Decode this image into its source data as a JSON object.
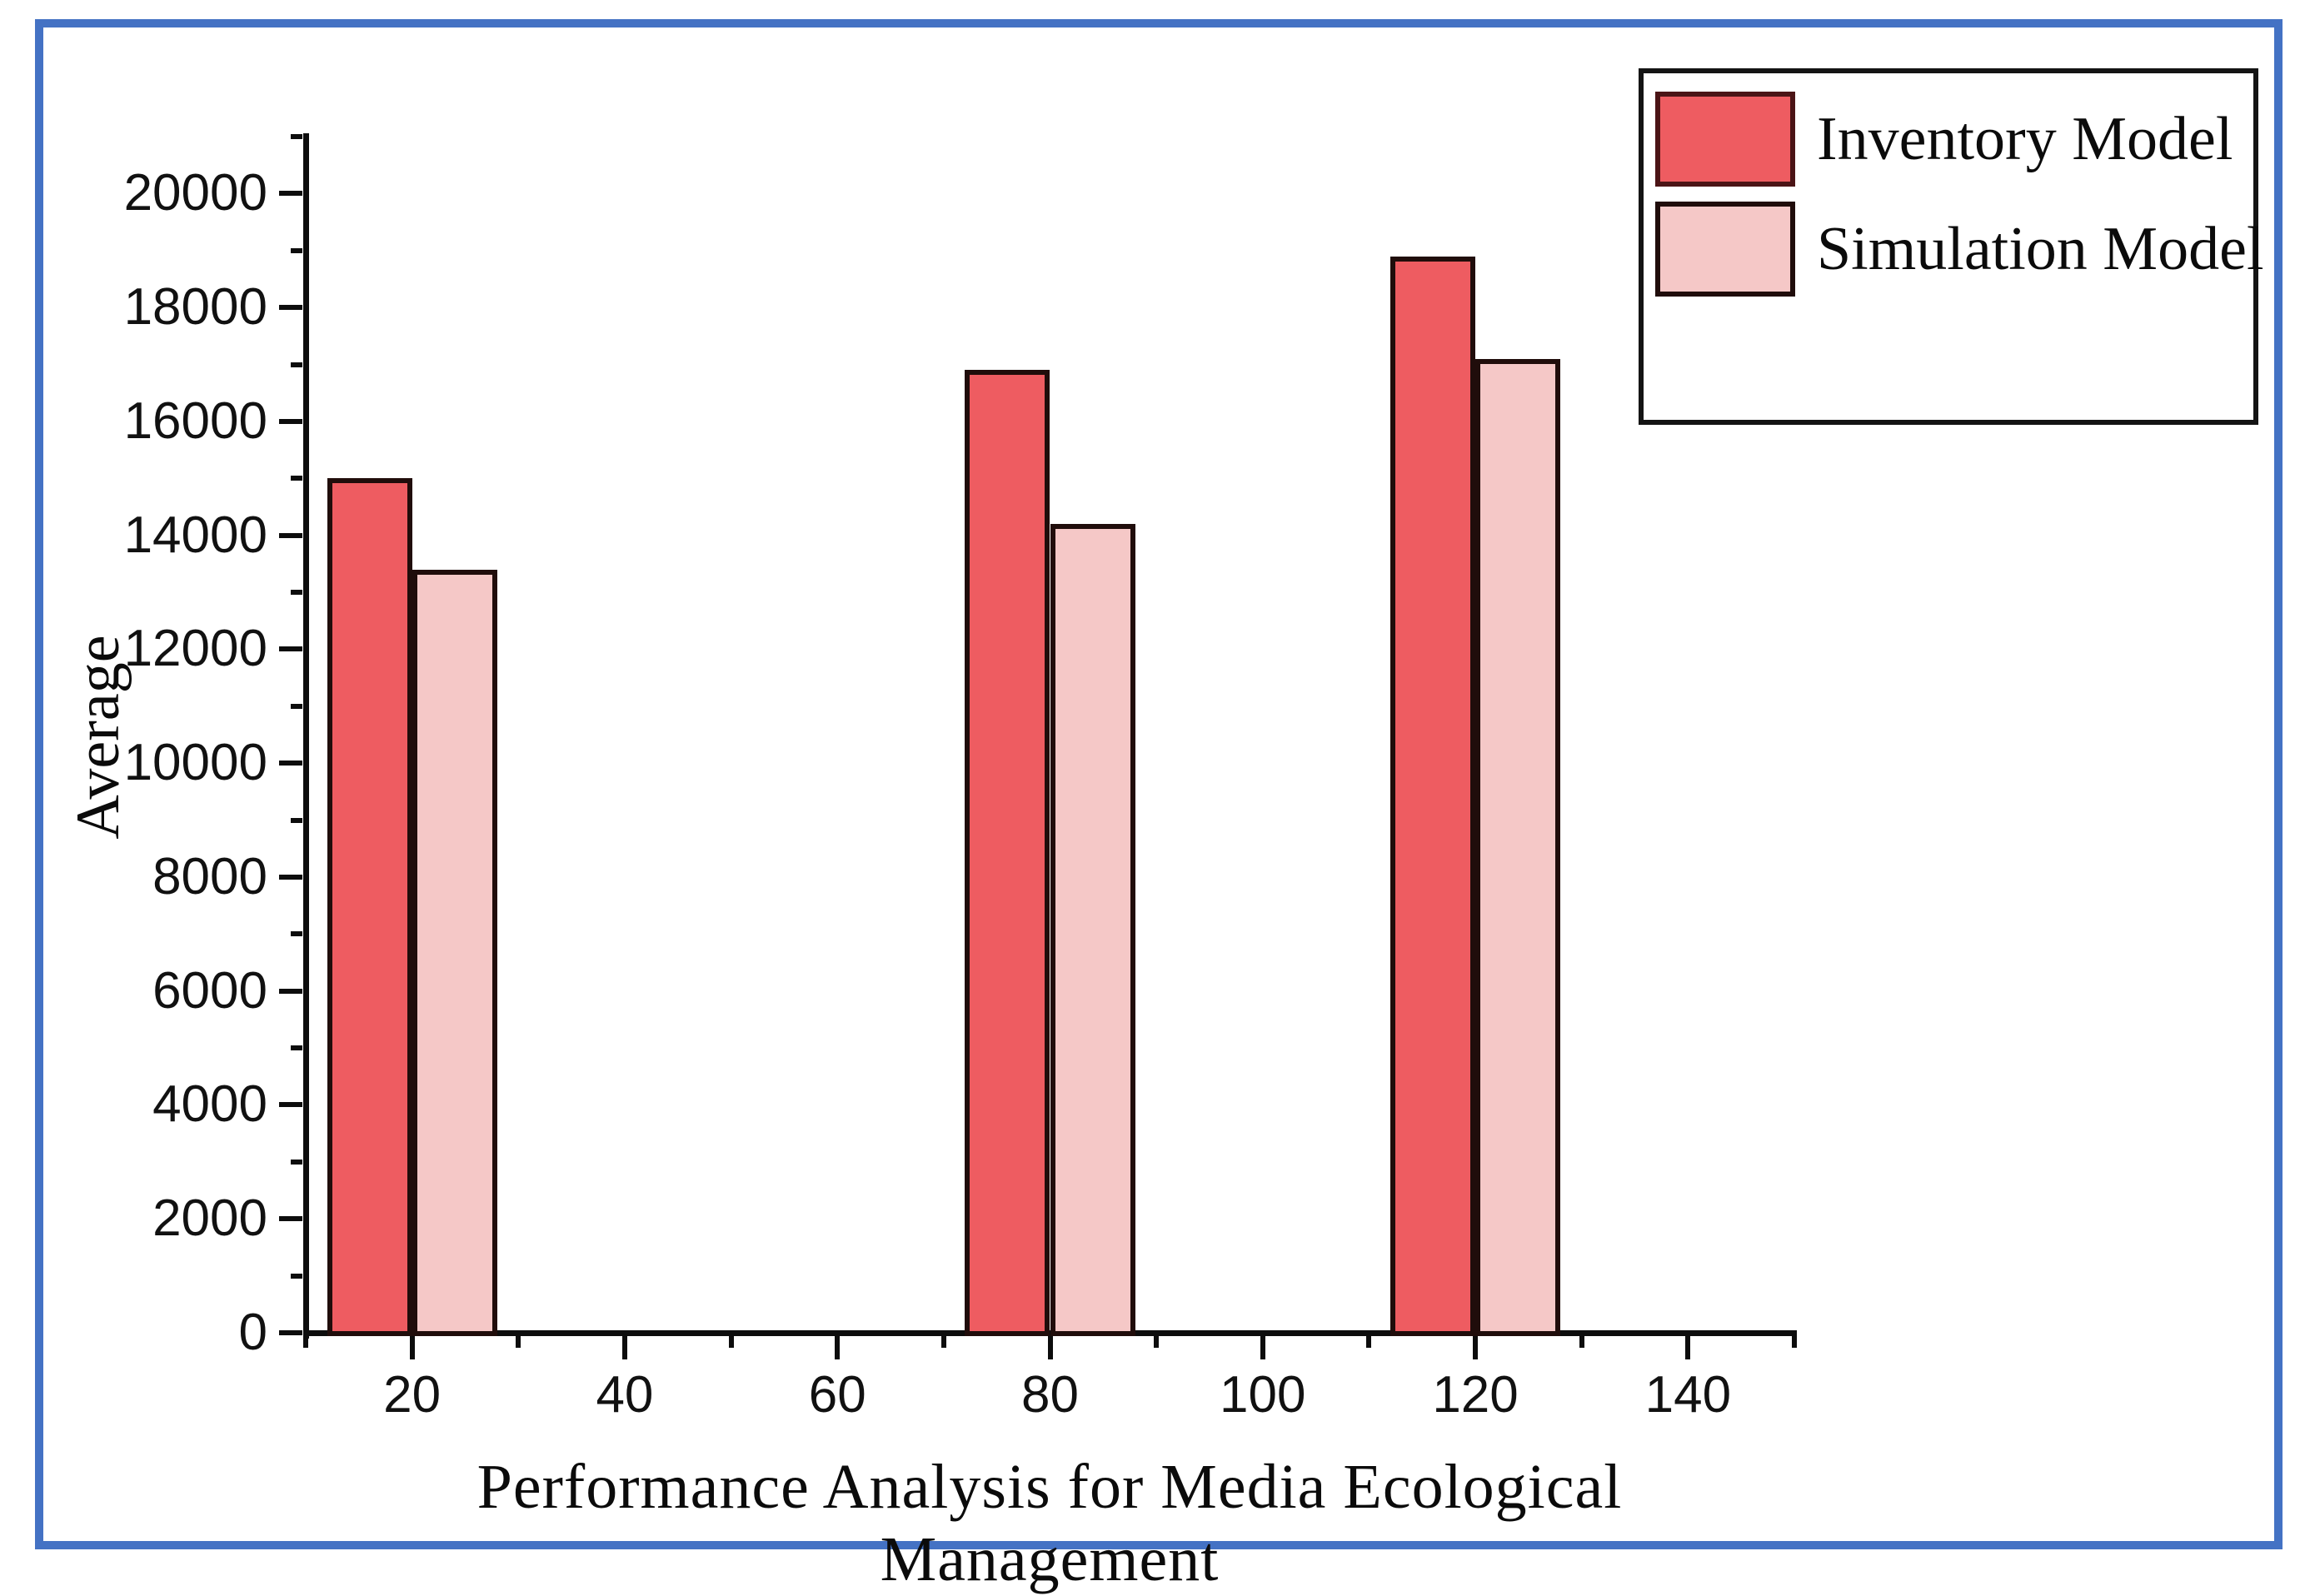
{
  "frame": {
    "border_color": "#4472c4",
    "background": "#ffffff"
  },
  "legend": {
    "position": "top-right",
    "items": [
      {
        "label": "Inventory Model",
        "color": "#ee5c61",
        "border": "#4b1416"
      },
      {
        "label": "Simulation Model",
        "color": "#f5c8c7",
        "border": "#200d0b"
      }
    ]
  },
  "chart_data": {
    "type": "bar",
    "title": "",
    "xlabel": "Performance Analysis for Media Ecological Management",
    "ylabel": "Average",
    "categories": [
      20,
      80,
      120
    ],
    "series": [
      {
        "name": "Inventory Model",
        "color": "#ee5c61",
        "values": [
          15000,
          16900,
          18900
        ]
      },
      {
        "name": "Simulation Model",
        "color": "#f5c8c7",
        "values": [
          13400,
          14200,
          17100
        ]
      }
    ],
    "bar_width_units": 8,
    "xlim": [
      10,
      150
    ],
    "ylim": [
      0,
      21000
    ],
    "x_major_ticks": [
      20,
      40,
      60,
      80,
      100,
      120,
      140
    ],
    "x_tick_labels": [
      "20",
      "40",
      "60",
      "80",
      "100",
      "120",
      "140"
    ],
    "x_minor_step": 10,
    "y_major_ticks": [
      0,
      2000,
      4000,
      6000,
      8000,
      10000,
      12000,
      14000,
      16000,
      18000,
      20000
    ],
    "y_tick_labels": [
      "0",
      "2000",
      "4000",
      "6000",
      "8000",
      "10000",
      "12000",
      "14000",
      "16000",
      "18000",
      "20000"
    ],
    "y_minor_step": 1000,
    "grid": false,
    "legend_position": "top-right",
    "tick_direction": "out"
  }
}
